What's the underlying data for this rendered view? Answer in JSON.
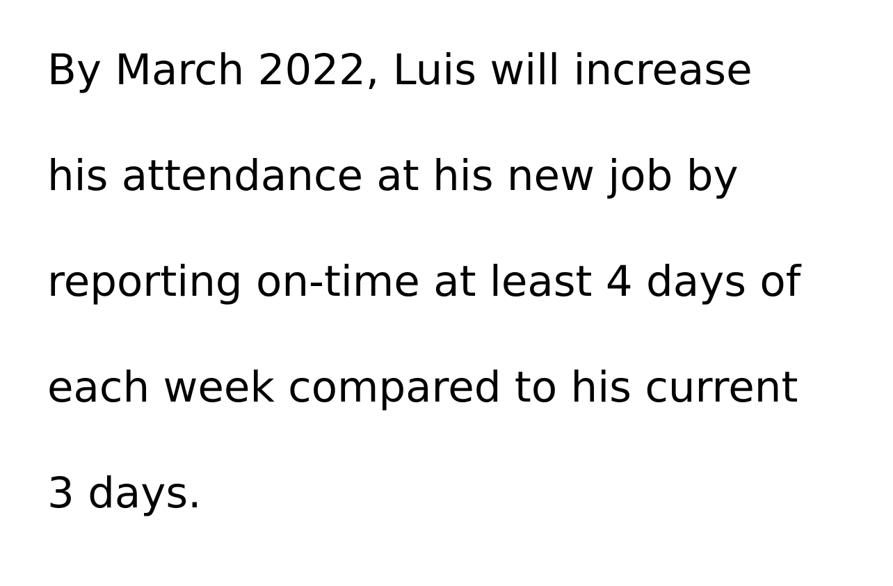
{
  "goal_statement": {
    "lines": [
      "By March 2022, Luis will increase",
      "his attendance at his new job by",
      "reporting on-time at least 4 days of",
      "each week compared to his current",
      "3 days."
    ]
  }
}
